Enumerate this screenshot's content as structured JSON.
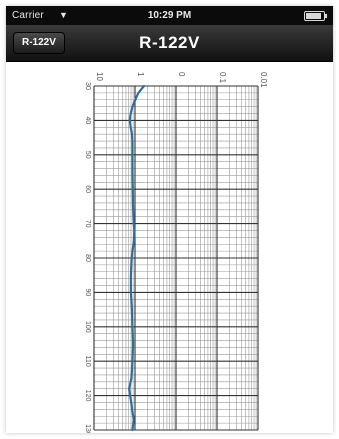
{
  "status_bar": {
    "carrier": "Carrier",
    "wifi_icon": "wifi-icon",
    "time": "10:29 PM",
    "battery_icon": "battery-icon"
  },
  "nav_bar": {
    "back_label": "R-122V",
    "title": "R-122V"
  },
  "colors": {
    "curve": "#2f6f9c",
    "grid_major": "#333333",
    "grid_minor": "#9a9a9a",
    "nav_bg": "#1a1a1a"
  },
  "chart_data": {
    "type": "line",
    "x_scale": "log",
    "x_tick_labels": [
      "10",
      "1",
      "0",
      "0.1",
      "0.01"
    ],
    "depth_labels": [
      "30",
      "40",
      "50",
      "60",
      "70",
      "80",
      "90",
      "100",
      "110",
      "120",
      "130"
    ],
    "curve_x": [
      1.0,
      0.75,
      0.62,
      0.5,
      0.42,
      0.38,
      0.42,
      0.47,
      0.5,
      0.5,
      0.5,
      0.51,
      0.52,
      0.55,
      0.58,
      0.56,
      0.46,
      0.43,
      0.43,
      0.47,
      0.5,
      0.52,
      0.5,
      0.45,
      0.35,
      0.42,
      0.48,
      0.55,
      0.5
    ],
    "curve_y": [
      30,
      32,
      34,
      36,
      38,
      40,
      42,
      44,
      46,
      50,
      55,
      60,
      65,
      70,
      72,
      75,
      80,
      85,
      90,
      95,
      100,
      105,
      110,
      115,
      118,
      121,
      124,
      127,
      130
    ]
  }
}
